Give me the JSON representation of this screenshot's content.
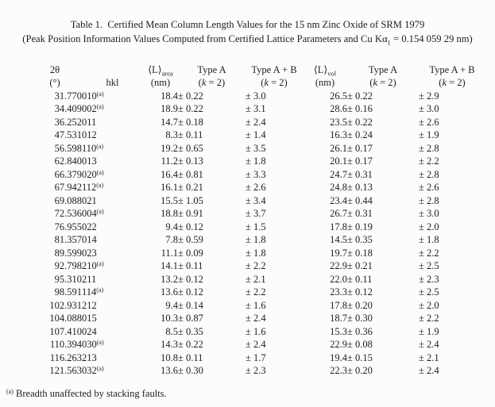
{
  "title": "Table 1.  Certified Mean Column Length Values for the 15 nm Zinc Oxide of SRM 1979",
  "subtitle": {
    "pre": "(Peak Position Information Values Computed from Certified Lattice Parameters and Cu Kα",
    "sub": "1",
    "post": " = 0.154 059 29 nm)"
  },
  "header": {
    "two_theta": "2θ",
    "two_theta_unit": "(°)",
    "hkl": "hkl",
    "l_area": "⟨L⟩",
    "l_area_sub": "area",
    "l_vol": "⟨L⟩",
    "l_vol_sub": "vol",
    "nm_unit": "(nm)",
    "type_a": "Type A",
    "type_ab": "Type A + B",
    "k_open": "(",
    "k_var": "k",
    "k_close": " = 2)"
  },
  "table": {
    "rows": [
      [
        "31.770",
        "010",
        "(a)",
        "18.4",
        "± 0.22",
        "± 3.0",
        "26.5",
        "± 0.22",
        "± 2.9"
      ],
      [
        "34.409",
        "002",
        "(a)",
        "18.9",
        "± 0.22",
        "± 3.1",
        "28.6",
        "± 0.16",
        "± 3.0"
      ],
      [
        "36.252",
        "011",
        "",
        "14.7",
        "± 0.18",
        "± 2.4",
        "23.5",
        "± 0.22",
        "± 2.6"
      ],
      [
        "47.531",
        "012",
        "",
        "8.3",
        "± 0.11",
        "± 1.4",
        "16.3",
        "± 0.24",
        "± 1.9"
      ],
      [
        "56.598",
        "110",
        "(a)",
        "19.2",
        "± 0.65",
        "± 3.5",
        "26.1",
        "± 0.17",
        "± 2.8"
      ],
      [
        "62.840",
        "013",
        "",
        "11.2",
        "± 0.13",
        "± 1.8",
        "20.1",
        "± 0.17",
        "± 2.2"
      ],
      [
        "66.379",
        "020",
        "(a)",
        "16.4",
        "± 0.81",
        "± 3.3",
        "24.7",
        "± 0.31",
        "± 2.8"
      ],
      [
        "67.942",
        "112",
        "(a)",
        "16.1",
        "± 0.21",
        "± 2.6",
        "24.8",
        "± 0.13",
        "± 2.6"
      ],
      [
        "69.088",
        "021",
        "",
        "15.5",
        "± 1.05",
        "± 3.4",
        "23.4",
        "± 0.44",
        "± 2.8"
      ],
      [
        "72.536",
        "004",
        "(a)",
        "18.8",
        "± 0.91",
        "± 3.7",
        "26.7",
        "± 0.31",
        "± 3.0"
      ],
      [
        "76.955",
        "022",
        "",
        "9.4",
        "± 0.12",
        "± 1.5",
        "17.8",
        "± 0.19",
        "± 2.0"
      ],
      [
        "81.357",
        "014",
        "",
        "7.8",
        "± 0.59",
        "± 1.8",
        "14.5",
        "± 0.35",
        "± 1.8"
      ],
      [
        "89.599",
        "023",
        "",
        "11.1",
        "± 0.09",
        "± 1.8",
        "19.7",
        "± 0.18",
        "± 2.2"
      ],
      [
        "92.798",
        "210",
        "(a)",
        "14.1",
        "± 0.11",
        "± 2.2",
        "22.9",
        "± 0.21",
        "± 2.5"
      ],
      [
        "95.310",
        "211",
        "",
        "13.2",
        "± 0.12",
        "± 2.1",
        "22.0",
        "± 0.11",
        "± 2.3"
      ],
      [
        "98.591",
        "114",
        "(a)",
        "13.6",
        "± 0.12",
        "± 2.2",
        "23.3",
        "± 0.12",
        "± 2.5"
      ],
      [
        "102.931",
        "212",
        "",
        "9.4",
        "± 0.14",
        "± 1.6",
        "17.8",
        "± 0.20",
        "± 2.0"
      ],
      [
        "104.088",
        "015",
        "",
        "10.3",
        "± 0.87",
        "± 2.4",
        "18.7",
        "± 0.30",
        "± 2.2"
      ],
      [
        "107.410",
        "024",
        "",
        "8.5",
        "± 0.35",
        "± 1.6",
        "15.3",
        "± 0.36",
        "± 1.9"
      ],
      [
        "110.394",
        "030",
        "(a)",
        "14.3",
        "± 0.22",
        "± 2.4",
        "22.9",
        "± 0.08",
        "± 2.4"
      ],
      [
        "116.263",
        "213",
        "",
        "10.8",
        "± 0.11",
        "± 1.7",
        "19.4",
        "± 0.15",
        "± 2.1"
      ],
      [
        "121.563",
        "032",
        "(a)",
        "13.6",
        "± 0.30",
        "± 2.3",
        "22.3",
        "± 0.20",
        "± 2.4"
      ]
    ]
  },
  "footnote": {
    "mark": "(a)",
    "text": " Breadth unaffected by stacking faults."
  }
}
